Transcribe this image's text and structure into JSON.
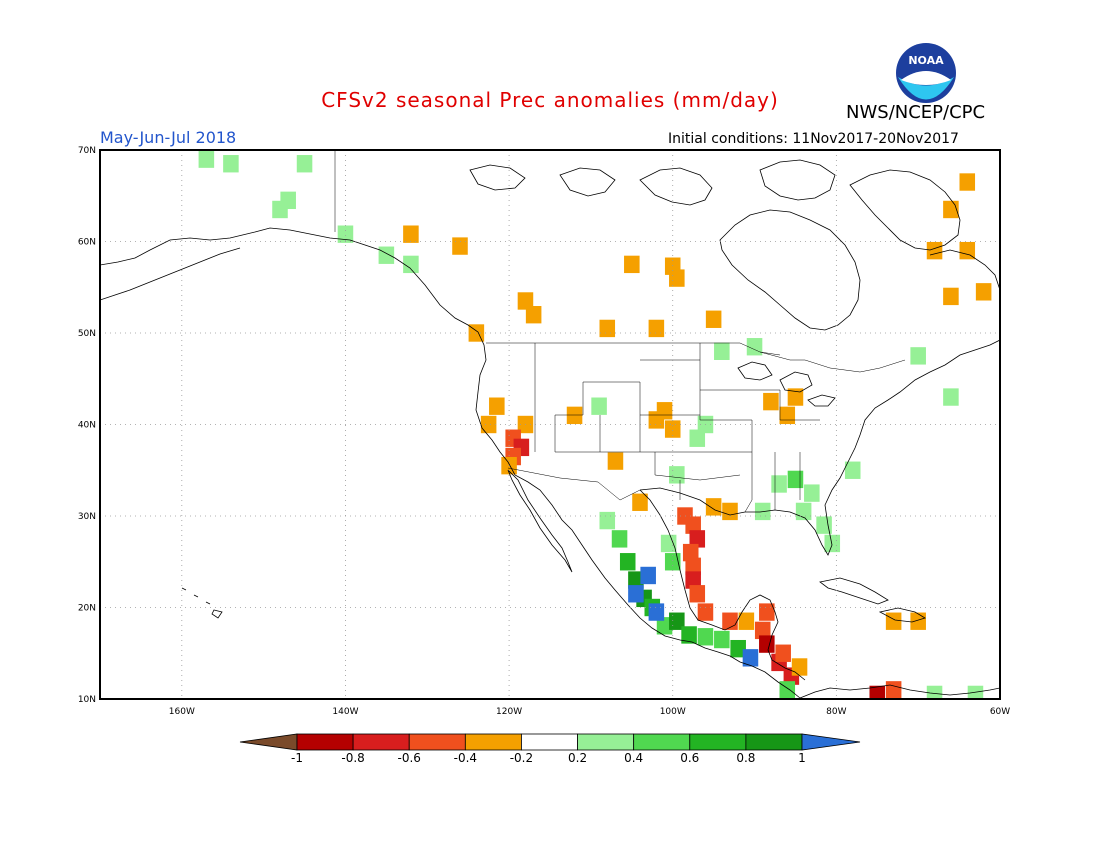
{
  "header": {
    "title": "CFSv2 seasonal Prec anomalies (mm/day)",
    "organization": "NWS/NCEP/CPC",
    "logo_text": "NOAA",
    "period": "May-Jun-Jul 2018",
    "initial_conditions": "Initial conditions: 11Nov2017-20Nov2017",
    "title_color": "#e00000",
    "period_color": "#2255cc"
  },
  "map": {
    "extent": {
      "lon_min": -170,
      "lon_max": -60,
      "lat_min": 10,
      "lat_max": 70
    },
    "lat_labels": [
      "10N",
      "20N",
      "30N",
      "40N",
      "50N",
      "60N",
      "70N"
    ],
    "lon_labels": [
      "160W",
      "140W",
      "120W",
      "100W",
      "80W",
      "60W"
    ],
    "grid": "dotted"
  },
  "colorbar": {
    "labels": [
      "-1",
      "-0.8",
      "-0.6",
      "-0.4",
      "-0.2",
      "0.2",
      "0.4",
      "0.6",
      "0.8",
      "1"
    ],
    "colors": [
      "#7a4a2a",
      "#b40000",
      "#d81e1e",
      "#f0501e",
      "#f5a000",
      "#ffffff",
      "#96f096",
      "#50d850",
      "#23b423",
      "#169616",
      "#2a6fd6"
    ]
  },
  "anomalies": [
    {
      "lon": -157,
      "lat": 69,
      "value": 0.3
    },
    {
      "lon": -154,
      "lat": 68.5,
      "value": 0.3
    },
    {
      "lon": -145,
      "lat": 68.5,
      "value": 0.3
    },
    {
      "lon": -147,
      "lat": 64.5,
      "value": 0.3
    },
    {
      "lon": -148,
      "lat": 63.5,
      "value": 0.3
    },
    {
      "lon": -140,
      "lat": 60.8,
      "value": 0.3
    },
    {
      "lon": -135,
      "lat": 58.5,
      "value": 0.3
    },
    {
      "lon": -132,
      "lat": 57.5,
      "value": 0.3
    },
    {
      "lon": -132,
      "lat": 60.8,
      "value": -0.3
    },
    {
      "lon": -126,
      "lat": 59.5,
      "value": -0.3
    },
    {
      "lon": -124,
      "lat": 50,
      "value": -0.3
    },
    {
      "lon": -117,
      "lat": 52,
      "value": -0.3
    },
    {
      "lon": -118,
      "lat": 53.5,
      "value": -0.3
    },
    {
      "lon": -105,
      "lat": 57.5,
      "value": -0.3
    },
    {
      "lon": -100,
      "lat": 57.3,
      "value": -0.3
    },
    {
      "lon": -99.5,
      "lat": 56,
      "value": -0.3
    },
    {
      "lon": -95,
      "lat": 51.5,
      "value": -0.3
    },
    {
      "lon": -108,
      "lat": 50.5,
      "value": -0.3
    },
    {
      "lon": -102,
      "lat": 50.5,
      "value": -0.3
    },
    {
      "lon": -121.5,
      "lat": 42,
      "value": -0.3
    },
    {
      "lon": -122.5,
      "lat": 40,
      "value": -0.3
    },
    {
      "lon": -118,
      "lat": 40,
      "value": -0.3
    },
    {
      "lon": -119.5,
      "lat": 38.5,
      "value": -0.5
    },
    {
      "lon": -118.5,
      "lat": 37.5,
      "value": -0.7
    },
    {
      "lon": -119.5,
      "lat": 36.5,
      "value": -0.5
    },
    {
      "lon": -120,
      "lat": 35.5,
      "value": -0.3
    },
    {
      "lon": -102,
      "lat": 40.5,
      "value": -0.3
    },
    {
      "lon": -100,
      "lat": 39.5,
      "value": -0.3
    },
    {
      "lon": -101,
      "lat": 41.5,
      "value": -0.3
    },
    {
      "lon": -104,
      "lat": 31.5,
      "value": -0.3
    },
    {
      "lon": -98.5,
      "lat": 30,
      "value": -0.5
    },
    {
      "lon": -97.5,
      "lat": 29,
      "value": -0.5
    },
    {
      "lon": -97,
      "lat": 27.5,
      "value": -0.7
    },
    {
      "lon": -97.8,
      "lat": 26,
      "value": -0.5
    },
    {
      "lon": -97.5,
      "lat": 24.5,
      "value": -0.5
    },
    {
      "lon": -97.5,
      "lat": 23,
      "value": -0.7
    },
    {
      "lon": -97,
      "lat": 21.5,
      "value": -0.5
    },
    {
      "lon": -96,
      "lat": 19.5,
      "value": -0.5
    },
    {
      "lon": -95,
      "lat": 31,
      "value": -0.3
    },
    {
      "lon": -93,
      "lat": 30.5,
      "value": -0.3
    },
    {
      "lon": -89,
      "lat": 17.5,
      "value": -0.5
    },
    {
      "lon": -88.5,
      "lat": 19.5,
      "value": -0.5
    },
    {
      "lon": -88.5,
      "lat": 16,
      "value": -0.9
    },
    {
      "lon": -87,
      "lat": 14,
      "value": -0.7
    },
    {
      "lon": -85.5,
      "lat": 12.5,
      "value": -0.7
    },
    {
      "lon": -86.5,
      "lat": 15,
      "value": -0.5
    },
    {
      "lon": -91,
      "lat": 18.5,
      "value": -0.3
    },
    {
      "lon": -93,
      "lat": 18.5,
      "value": -0.5
    },
    {
      "lon": -84.5,
      "lat": 13.5,
      "value": -0.3
    },
    {
      "lon": -88,
      "lat": 42.5,
      "value": -0.3
    },
    {
      "lon": -85,
      "lat": 43,
      "value": -0.3
    },
    {
      "lon": -86,
      "lat": 41,
      "value": -0.3
    },
    {
      "lon": -73,
      "lat": 18.5,
      "value": -0.3
    },
    {
      "lon": -70,
      "lat": 18.5,
      "value": -0.3
    },
    {
      "lon": -75,
      "lat": 10.5,
      "value": -0.9
    },
    {
      "lon": -73,
      "lat": 11,
      "value": -0.5
    },
    {
      "lon": -68,
      "lat": 59,
      "value": -0.3
    },
    {
      "lon": -64,
      "lat": 59,
      "value": -0.3
    },
    {
      "lon": -62,
      "lat": 54.5,
      "value": -0.3
    },
    {
      "lon": -66,
      "lat": 54,
      "value": -0.3
    },
    {
      "lon": -64,
      "lat": 66.5,
      "value": -0.3
    },
    {
      "lon": -66,
      "lat": 63.5,
      "value": -0.3
    },
    {
      "lon": -107,
      "lat": 36,
      "value": -0.3
    },
    {
      "lon": -112,
      "lat": 41,
      "value": -0.3
    },
    {
      "lon": -109,
      "lat": 42,
      "value": 0.3
    },
    {
      "lon": -99.5,
      "lat": 34.5,
      "value": 0.3
    },
    {
      "lon": -96,
      "lat": 40,
      "value": 0.3
    },
    {
      "lon": -97,
      "lat": 38.5,
      "value": 0.3
    },
    {
      "lon": -85,
      "lat": 34,
      "value": 0.5
    },
    {
      "lon": -87,
      "lat": 33.5,
      "value": 0.3
    },
    {
      "lon": -83,
      "lat": 32.5,
      "value": 0.3
    },
    {
      "lon": -81.5,
      "lat": 29,
      "value": 0.3
    },
    {
      "lon": -84,
      "lat": 30.5,
      "value": 0.3
    },
    {
      "lon": -89,
      "lat": 30.5,
      "value": 0.3
    },
    {
      "lon": -80.5,
      "lat": 27,
      "value": 0.3
    },
    {
      "lon": -94,
      "lat": 48,
      "value": 0.3
    },
    {
      "lon": -90,
      "lat": 48.5,
      "value": 0.3
    },
    {
      "lon": -70,
      "lat": 47.5,
      "value": 0.3
    },
    {
      "lon": -66,
      "lat": 43,
      "value": 0.3
    },
    {
      "lon": -78,
      "lat": 35,
      "value": 0.3
    },
    {
      "lon": -108,
      "lat": 29.5,
      "value": 0.3
    },
    {
      "lon": -106.5,
      "lat": 27.5,
      "value": 0.5
    },
    {
      "lon": -105.5,
      "lat": 25,
      "value": 0.7
    },
    {
      "lon": -104.5,
      "lat": 23,
      "value": 0.9
    },
    {
      "lon": -103.5,
      "lat": 21,
      "value": 0.9
    },
    {
      "lon": -102.5,
      "lat": 20,
      "value": 0.7
    },
    {
      "lon": -101,
      "lat": 18,
      "value": 0.5
    },
    {
      "lon": -103,
      "lat": 23.5,
      "value": 1.1
    },
    {
      "lon": -104.5,
      "lat": 21.5,
      "value": 1.1
    },
    {
      "lon": -102,
      "lat": 19.5,
      "value": 1.1
    },
    {
      "lon": -99.5,
      "lat": 18.5,
      "value": 0.9
    },
    {
      "lon": -98,
      "lat": 17,
      "value": 0.7
    },
    {
      "lon": -96,
      "lat": 16.8,
      "value": 0.5
    },
    {
      "lon": -94,
      "lat": 16.5,
      "value": 0.5
    },
    {
      "lon": -92,
      "lat": 15.5,
      "value": 0.7
    },
    {
      "lon": -90.5,
      "lat": 14.5,
      "value": 1.1
    },
    {
      "lon": -100.5,
      "lat": 27,
      "value": 0.3
    },
    {
      "lon": -100,
      "lat": 25,
      "value": 0.5
    },
    {
      "lon": -68,
      "lat": 10.5,
      "value": 0.3
    },
    {
      "lon": -63,
      "lat": 10.5,
      "value": 0.3
    },
    {
      "lon": -86,
      "lat": 11,
      "value": 0.5
    }
  ]
}
